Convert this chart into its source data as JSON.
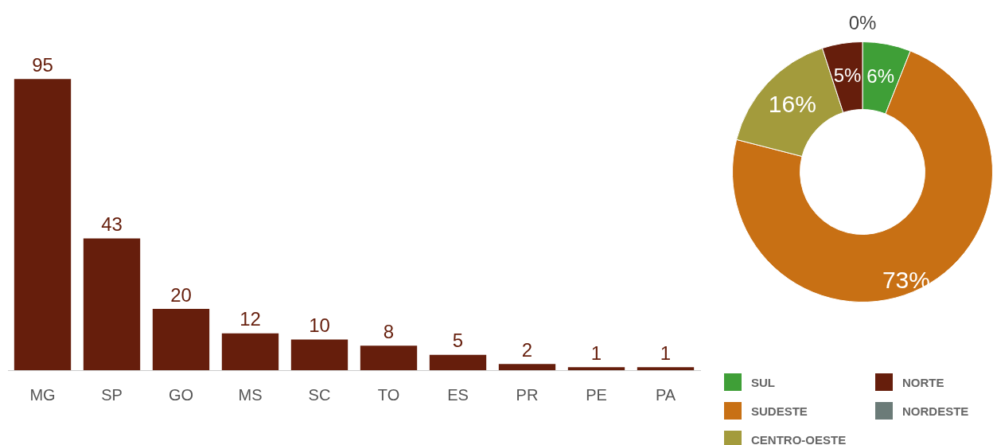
{
  "chart_data": [
    {
      "type": "bar",
      "categories": [
        "MG",
        "SP",
        "GO",
        "MS",
        "SC",
        "TO",
        "ES",
        "PR",
        "PE",
        "PA"
      ],
      "values": [
        95,
        43,
        20,
        12,
        10,
        8,
        5,
        2,
        1,
        1
      ],
      "color": "#661e0c",
      "data_labels": true,
      "tick_labels": "x",
      "grid": false,
      "legend": false
    },
    {
      "type": "donut",
      "categories": [
        "SUL",
        "SUDESTE",
        "CENTRO-OESTE",
        "NORTE",
        "NORDESTE"
      ],
      "values": [
        6,
        73,
        16,
        5,
        0
      ],
      "colors": [
        "#3f9f37",
        "#c87014",
        "#a39b3c",
        "#661e0c",
        "#6b7b78"
      ],
      "value_labels": [
        "6%",
        "73%",
        "16%",
        "5%",
        "0%"
      ],
      "legend": "bottom"
    }
  ]
}
